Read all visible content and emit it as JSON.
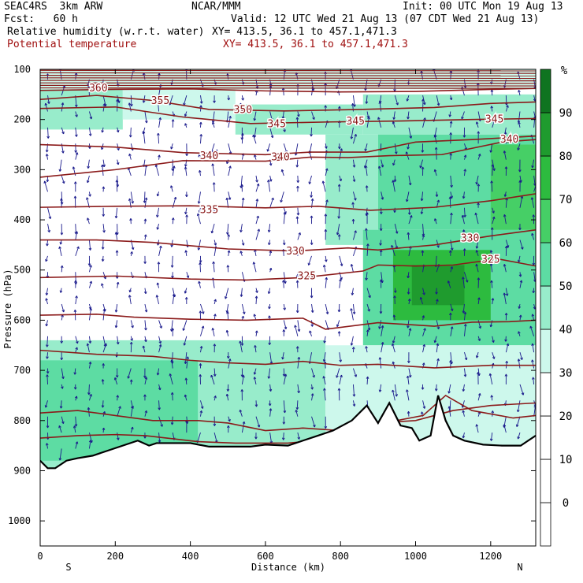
{
  "header": {
    "model": "SEAC4RS  3km ARW",
    "org": "NCAR/MMM",
    "init": "Init: 00 UTC Mon 19 Aug 13",
    "fcst": "Fcst:   60 h",
    "valid": "Valid: 12 UTC Wed 21 Aug 13 (07 CDT Wed 21 Aug 13)",
    "field1": "Relative humidity (w.r.t. water)",
    "xy1": "XY= 413.5, 36.1 to 457.1,471.3",
    "field2": "Potential temperature",
    "xy2": "XY= 413.5, 36.1 to 457.1,471.3"
  },
  "colors": {
    "theta": "#8b1a1a",
    "wind": "#1a1a8c",
    "terrain": "#000000",
    "rh_bins": [
      "#ffffff",
      "#ffffff",
      "#ffffff",
      "#ffffff",
      "#cdf8ec",
      "#98eccb",
      "#5ddca3",
      "#46cf66",
      "#2dbb3f",
      "#1f9b2e",
      "#0f7420"
    ]
  },
  "chart_data": {
    "type": "contour",
    "xlabel": "Distance (km)",
    "ylabel": "Pressure (hPa)",
    "xlim": [
      0,
      1320
    ],
    "ylim": [
      1050,
      100
    ],
    "x_ticks": [
      0,
      200,
      400,
      600,
      800,
      1000,
      1200
    ],
    "y_ticks": [
      100,
      200,
      300,
      400,
      500,
      600,
      700,
      800,
      900,
      1000
    ],
    "end_labels": {
      "left": "S",
      "right": "N"
    },
    "colorbar": {
      "unit": "%",
      "levels": [
        0,
        10,
        20,
        30,
        40,
        50,
        60,
        70,
        80,
        90
      ],
      "tick_labels": [
        "0",
        "10",
        "20",
        "30",
        "40",
        "50",
        "60",
        "70",
        "80",
        "90"
      ]
    },
    "theta_labels": [
      {
        "text": "360",
        "x": 155,
        "p": 138
      },
      {
        "text": "355",
        "x": 320,
        "p": 163
      },
      {
        "text": "350",
        "x": 540,
        "p": 181
      },
      {
        "text": "345",
        "x": 630,
        "p": 209
      },
      {
        "text": "345",
        "x": 840,
        "p": 204
      },
      {
        "text": "345",
        "x": 1210,
        "p": 200
      },
      {
        "text": "340",
        "x": 1250,
        "p": 240
      },
      {
        "text": "340",
        "x": 450,
        "p": 273
      },
      {
        "text": "340",
        "x": 640,
        "p": 275
      },
      {
        "text": "335",
        "x": 450,
        "p": 380
      },
      {
        "text": "330",
        "x": 680,
        "p": 463
      },
      {
        "text": "330",
        "x": 1145,
        "p": 437
      },
      {
        "text": "325",
        "x": 710,
        "p": 512
      },
      {
        "text": "325",
        "x": 1200,
        "p": 479
      }
    ],
    "theta_contours": [
      {
        "points": [
          [
            0,
            142
          ],
          [
            200,
            140
          ],
          [
            400,
            139
          ],
          [
            600,
            143
          ],
          [
            800,
            145
          ],
          [
            1000,
            144
          ],
          [
            1200,
            140
          ],
          [
            1320,
            138
          ]
        ]
      },
      {
        "points": [
          [
            0,
            160
          ],
          [
            150,
            152
          ],
          [
            300,
            162
          ],
          [
            450,
            180
          ],
          [
            650,
            183
          ],
          [
            850,
            180
          ],
          [
            1050,
            176
          ],
          [
            1200,
            168
          ],
          [
            1320,
            165
          ]
        ]
      },
      {
        "points": [
          [
            0,
            178
          ],
          [
            200,
            175
          ],
          [
            380,
            195
          ],
          [
            560,
            208
          ],
          [
            760,
            205
          ],
          [
            960,
            203
          ],
          [
            1150,
            200
          ],
          [
            1320,
            198
          ]
        ]
      },
      {
        "points": [
          [
            0,
            250
          ],
          [
            200,
            255
          ],
          [
            380,
            266
          ],
          [
            600,
            270
          ],
          [
            720,
            265
          ],
          [
            870,
            265
          ],
          [
            1000,
            245
          ],
          [
            1150,
            240
          ],
          [
            1320,
            233
          ]
        ]
      },
      {
        "points": [
          [
            0,
            315
          ],
          [
            200,
            300
          ],
          [
            380,
            282
          ],
          [
            600,
            283
          ],
          [
            720,
            275
          ],
          [
            820,
            276
          ],
          [
            930,
            272
          ],
          [
            1070,
            270
          ],
          [
            1230,
            245
          ],
          [
            1320,
            240
          ]
        ]
      },
      {
        "points": [
          [
            0,
            375
          ],
          [
            200,
            373
          ],
          [
            400,
            372
          ],
          [
            600,
            376
          ],
          [
            740,
            373
          ],
          [
            880,
            381
          ],
          [
            1050,
            375
          ],
          [
            1200,
            362
          ],
          [
            1320,
            348
          ]
        ]
      },
      {
        "points": [
          [
            0,
            440
          ],
          [
            150,
            440
          ],
          [
            300,
            445
          ],
          [
            500,
            458
          ],
          [
            680,
            462
          ],
          [
            820,
            456
          ],
          [
            900,
            460
          ],
          [
            1050,
            450
          ],
          [
            1200,
            432
          ],
          [
            1320,
            420
          ]
        ]
      },
      {
        "points": [
          [
            0,
            515
          ],
          [
            200,
            512
          ],
          [
            400,
            518
          ],
          [
            550,
            520
          ],
          [
            700,
            515
          ],
          [
            860,
            502
          ],
          [
            900,
            490
          ],
          [
            1000,
            492
          ],
          [
            1100,
            490
          ],
          [
            1220,
            478
          ],
          [
            1320,
            492
          ]
        ]
      },
      {
        "points": [
          [
            0,
            590
          ],
          [
            150,
            588
          ],
          [
            250,
            594
          ],
          [
            400,
            598
          ],
          [
            550,
            600
          ],
          [
            700,
            596
          ],
          [
            760,
            618
          ],
          [
            900,
            605
          ],
          [
            1050,
            612
          ],
          [
            1150,
            604
          ],
          [
            1250,
            603
          ],
          [
            1320,
            600
          ]
        ]
      },
      {
        "points": [
          [
            0,
            660
          ],
          [
            150,
            668
          ],
          [
            300,
            672
          ],
          [
            400,
            680
          ],
          [
            500,
            685
          ],
          [
            600,
            688
          ],
          [
            700,
            682
          ],
          [
            800,
            690
          ],
          [
            900,
            688
          ],
          [
            1050,
            695
          ],
          [
            1200,
            690
          ],
          [
            1320,
            690
          ]
        ]
      },
      {
        "points": [
          [
            0,
            785
          ],
          [
            100,
            780
          ],
          [
            200,
            790
          ],
          [
            300,
            800
          ],
          [
            420,
            800
          ],
          [
            500,
            805
          ],
          [
            600,
            820
          ],
          [
            700,
            815
          ],
          [
            800,
            820
          ],
          [
            900,
            805
          ],
          [
            1000,
            800
          ],
          [
            1100,
            780
          ],
          [
            1200,
            770
          ],
          [
            1320,
            765
          ]
        ]
      },
      {
        "points": [
          [
            0,
            835
          ],
          [
            100,
            830
          ],
          [
            200,
            828
          ],
          [
            280,
            830
          ],
          [
            420,
            842
          ],
          [
            520,
            845
          ],
          [
            660,
            845
          ],
          [
            760,
            838
          ],
          [
            850,
            808
          ],
          [
            950,
            800
          ],
          [
            1020,
            790
          ],
          [
            1080,
            750
          ],
          [
            1150,
            780
          ],
          [
            1260,
            795
          ],
          [
            1320,
            790
          ]
        ]
      }
    ],
    "terrain": [
      [
        0,
        880
      ],
      [
        20,
        895
      ],
      [
        40,
        895
      ],
      [
        70,
        880
      ],
      [
        100,
        875
      ],
      [
        140,
        870
      ],
      [
        180,
        860
      ],
      [
        220,
        850
      ],
      [
        260,
        840
      ],
      [
        290,
        850
      ],
      [
        310,
        845
      ],
      [
        360,
        845
      ],
      [
        400,
        845
      ],
      [
        450,
        852
      ],
      [
        500,
        852
      ],
      [
        560,
        852
      ],
      [
        600,
        848
      ],
      [
        660,
        850
      ],
      [
        700,
        840
      ],
      [
        740,
        830
      ],
      [
        780,
        820
      ],
      [
        830,
        800
      ],
      [
        870,
        770
      ],
      [
        900,
        805
      ],
      [
        930,
        765
      ],
      [
        960,
        810
      ],
      [
        990,
        815
      ],
      [
        1010,
        840
      ],
      [
        1040,
        830
      ],
      [
        1060,
        750
      ],
      [
        1080,
        800
      ],
      [
        1100,
        830
      ],
      [
        1130,
        840
      ],
      [
        1180,
        848
      ],
      [
        1230,
        850
      ],
      [
        1280,
        850
      ],
      [
        1300,
        840
      ],
      [
        1320,
        830
      ]
    ],
    "rh_cells": [
      {
        "x0": 0,
        "x1": 1320,
        "p0": 100,
        "p1": 140,
        "rh": 35
      },
      {
        "x0": 0,
        "x1": 220,
        "p0": 140,
        "p1": 220,
        "rh": 45
      },
      {
        "x0": 220,
        "x1": 520,
        "p0": 140,
        "p1": 200,
        "rh": 38
      },
      {
        "x0": 520,
        "x1": 860,
        "p0": 170,
        "p1": 230,
        "rh": 42
      },
      {
        "x0": 860,
        "x1": 1320,
        "p0": 150,
        "p1": 230,
        "rh": 45
      },
      {
        "x0": 760,
        "x1": 900,
        "p0": 230,
        "p1": 450,
        "rh": 40
      },
      {
        "x0": 900,
        "x1": 1320,
        "p0": 230,
        "p1": 420,
        "rh": 55
      },
      {
        "x0": 860,
        "x1": 1320,
        "p0": 420,
        "p1": 650,
        "rh": 52
      },
      {
        "x0": 940,
        "x1": 1200,
        "p0": 460,
        "p1": 600,
        "rh": 72
      },
      {
        "x0": 990,
        "x1": 1130,
        "p0": 490,
        "p1": 570,
        "rh": 85
      },
      {
        "x0": 1200,
        "x1": 1320,
        "p0": 250,
        "p1": 420,
        "rh": 68
      },
      {
        "x0": 0,
        "x1": 760,
        "p0": 640,
        "p1": 900,
        "rh": 45
      },
      {
        "x0": 0,
        "x1": 420,
        "p0": 680,
        "p1": 880,
        "rh": 55
      },
      {
        "x0": 760,
        "x1": 1320,
        "p0": 650,
        "p1": 860,
        "rh": 38
      }
    ],
    "wind_field": "blue vertical-circulation vectors over the cross section"
  }
}
